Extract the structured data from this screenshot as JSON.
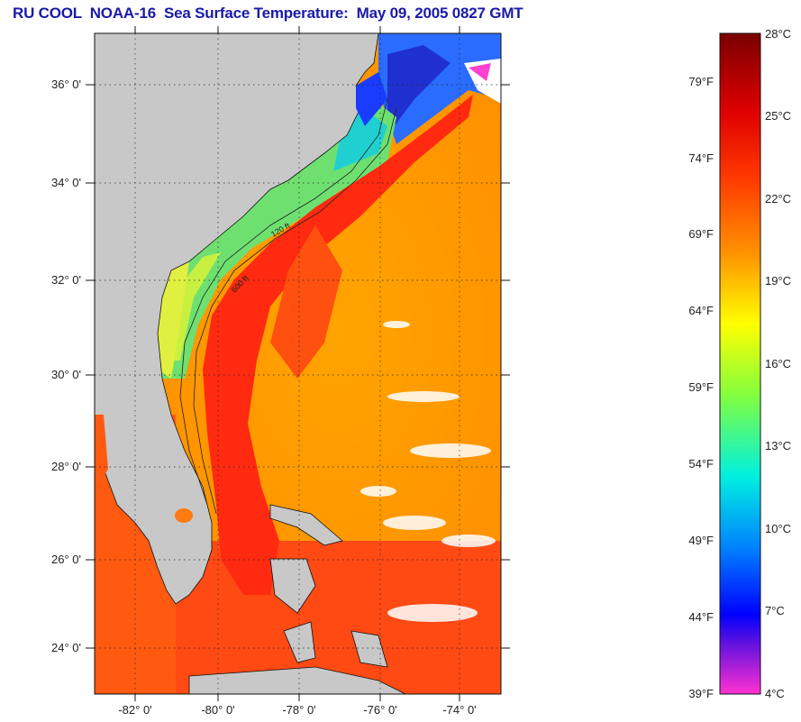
{
  "title": "RU COOL  NOAA-16  Sea Surface Temperature:  May 09, 2005 0827 GMT",
  "map": {
    "lat_labels": [
      "36° 0'",
      "34° 0'",
      "32° 0'",
      "30° 0'",
      "28° 0'",
      "26° 0'",
      "24° 0'"
    ],
    "lon_labels": [
      "-82° 0'",
      "-80° 0'",
      "-78° 0'",
      "-76° 0'",
      "-74° 0'"
    ],
    "isobath_labels": [
      "120 ft",
      "600 ft"
    ],
    "land_color": "#c8c8c8",
    "gulf_stream_color": "#ff2a10"
  },
  "colorbar": {
    "fahrenheit_labels": [
      "79°F",
      "74°F",
      "69°F",
      "64°F",
      "59°F",
      "54°F",
      "49°F",
      "44°F",
      "39°F"
    ],
    "celsius_labels": [
      "28°C",
      "25°C",
      "22°C",
      "19°C",
      "16°C",
      "13°C",
      "10°C",
      "7°C",
      "4°C"
    ],
    "colors": [
      "#8b0000",
      "#ff1500",
      "#ff8a00",
      "#ffff00",
      "#9bff00",
      "#00e0d0",
      "#0070ff",
      "#0000ff",
      "#7a00d0",
      "#ff30c8"
    ]
  }
}
